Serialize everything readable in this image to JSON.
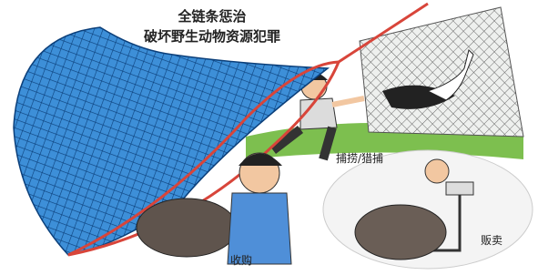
{
  "title": {
    "line1": "全链条惩治",
    "line2": "破坏野生动物资源犯罪"
  },
  "labels": {
    "hunting": "捕捞/猎捕",
    "buying": "收购",
    "selling": "贩卖"
  }
}
